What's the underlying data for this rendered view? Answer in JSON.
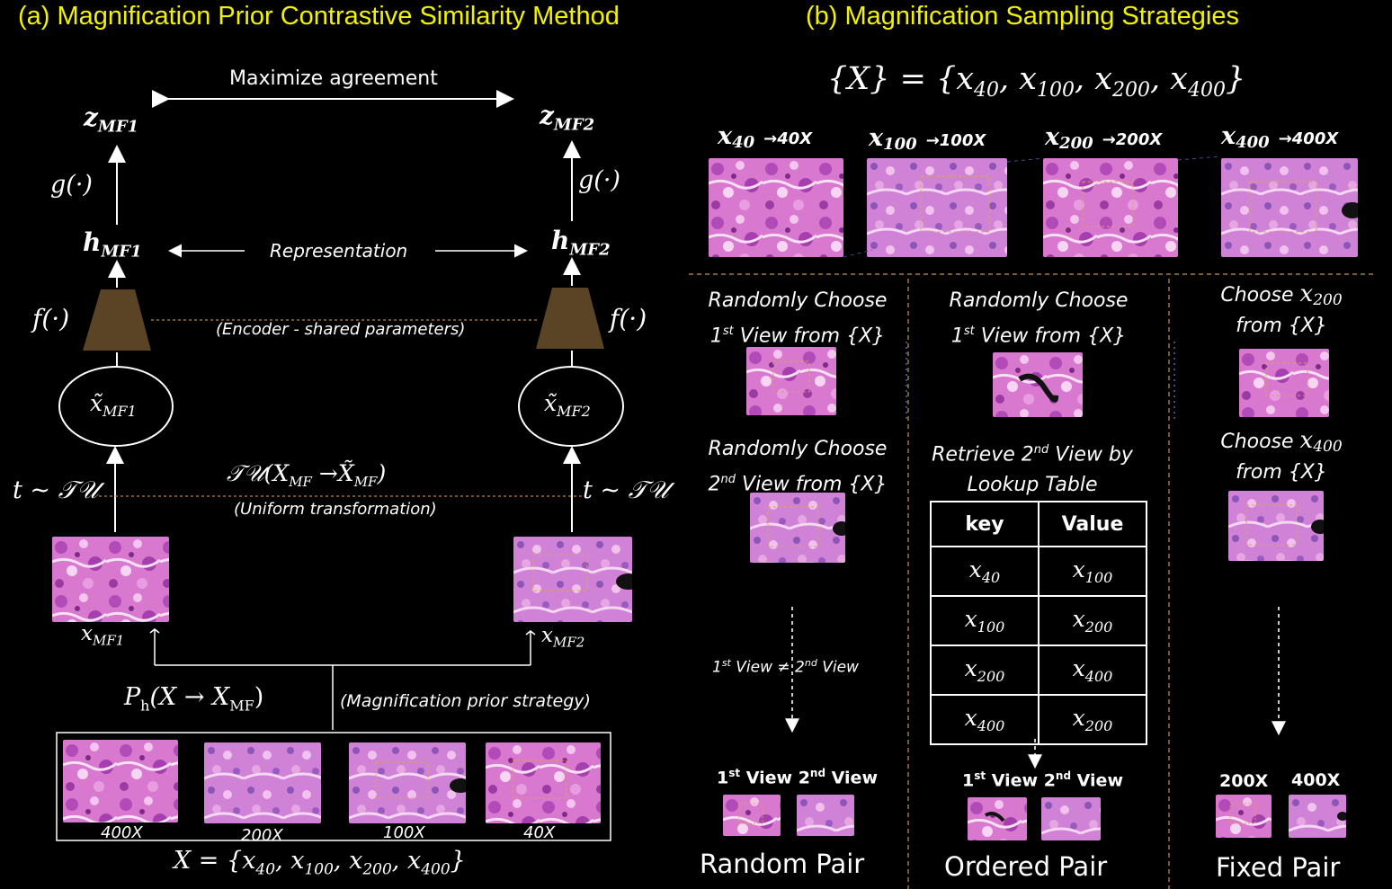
{
  "titles": {
    "a": "(a) Magnification Prior Contrastive Similarity Method",
    "b": "(b) Magnification Sampling Strategies"
  },
  "colors": {
    "title": "#f2f200",
    "encoder": "#5b4426",
    "divider": "#c8934a",
    "tissue_base": "#d670c8"
  },
  "panel_a": {
    "maximize": "Maximize agreement",
    "z1": "z",
    "z1_sub": "MF1",
    "z2": "z",
    "z2_sub": "MF2",
    "g1": "g(·)",
    "g2": "g(·)",
    "h1": "h",
    "h1_sub": "MF1",
    "h2": "h",
    "h2_sub": "MF2",
    "representation": "Representation",
    "f1": "f(·)",
    "f2": "f(·)",
    "encoder_note": "(Encoder - shared parameters)",
    "xt1": "x̃",
    "xt1_sub": "MF1",
    "xt2": "x̃",
    "xt2_sub": "MF2",
    "t1": "t ~ 𝒯𝒰",
    "t2": "t ~ 𝒯𝒰",
    "transform_formula": "𝒯𝒰(X",
    "transform_formula_sub1": "MF",
    "transform_formula_mid": " →X̃",
    "transform_formula_sub2": "MF",
    "transform_formula_end": ")",
    "transform_note": "(Uniform transformation)",
    "xmf1": "x",
    "xmf1_sub": "MF1",
    "xmf2": "x",
    "xmf2_sub": "MF2",
    "prior_formula": "P",
    "prior_formula_sub": "h",
    "prior_formula_rest": "(X → X",
    "prior_formula_sub2": "MF",
    "prior_formula_end": ")",
    "prior_note": "(Magnification prior strategy)",
    "mags": [
      "400X",
      "200X",
      "100X",
      "40X"
    ],
    "set_formula": "X = {x",
    "set_subs": [
      "40",
      "100",
      "200",
      "400"
    ]
  },
  "panel_b": {
    "set_formula_prefix": "{X} = {x",
    "set_subs": [
      "40",
      "100",
      "200",
      "400"
    ],
    "mag_items": [
      {
        "x": "x",
        "sub": "40",
        "arrow": "→40X"
      },
      {
        "x": "x",
        "sub": "100",
        "arrow": "→100X"
      },
      {
        "x": "x",
        "sub": "200",
        "arrow": "→200X"
      },
      {
        "x": "x",
        "sub": "400",
        "arrow": "→400X"
      }
    ],
    "col1": {
      "step1_l1": "Randomly Choose",
      "step1_l2a": "1",
      "step1_l2sup": "st",
      "step1_l2b": " View from {X}",
      "step2_l1": "Randomly Choose",
      "step2_l2a": "2",
      "step2_l2sup": "nd",
      "step2_l2b": " View from {X}",
      "neq_a": "1",
      "neq_asup": "st",
      "neq_b": " View ≠  2",
      "neq_bsup": "nd",
      "neq_c": " View",
      "v1": "1",
      "v1sup": "st",
      "v1b": " View",
      "v2": "2",
      "v2sup": "nd",
      "v2b": " View",
      "pair": "Random Pair"
    },
    "col2": {
      "step1_l1": "Randomly Choose",
      "step1_l2a": "1",
      "step1_l2sup": "st",
      "step1_l2b": " View from {X}",
      "step2_l1a": "Retrieve 2",
      "step2_l1sup": "nd",
      "step2_l1b": " View by",
      "step2_l2": "Lookup Table",
      "table_head": [
        "key",
        "Value"
      ],
      "table_rows": [
        [
          "40",
          "100"
        ],
        [
          "100",
          "200"
        ],
        [
          "200",
          "400"
        ],
        [
          "400",
          "200"
        ]
      ],
      "v1": "1",
      "v1sup": "st",
      "v1b": " View",
      "v2": "2",
      "v2sup": "nd",
      "v2b": " View",
      "pair": "Ordered Pair"
    },
    "col3": {
      "step1_a": "Choose ",
      "step1_x": "x",
      "step1_sub": "200",
      "step1_b": "from {X}",
      "step2_a": "Choose ",
      "step2_x": "x",
      "step2_sub": "400",
      "step2_b": "from {X}",
      "l1": "200X",
      "l2": "400X",
      "pair": "Fixed Pair"
    }
  }
}
